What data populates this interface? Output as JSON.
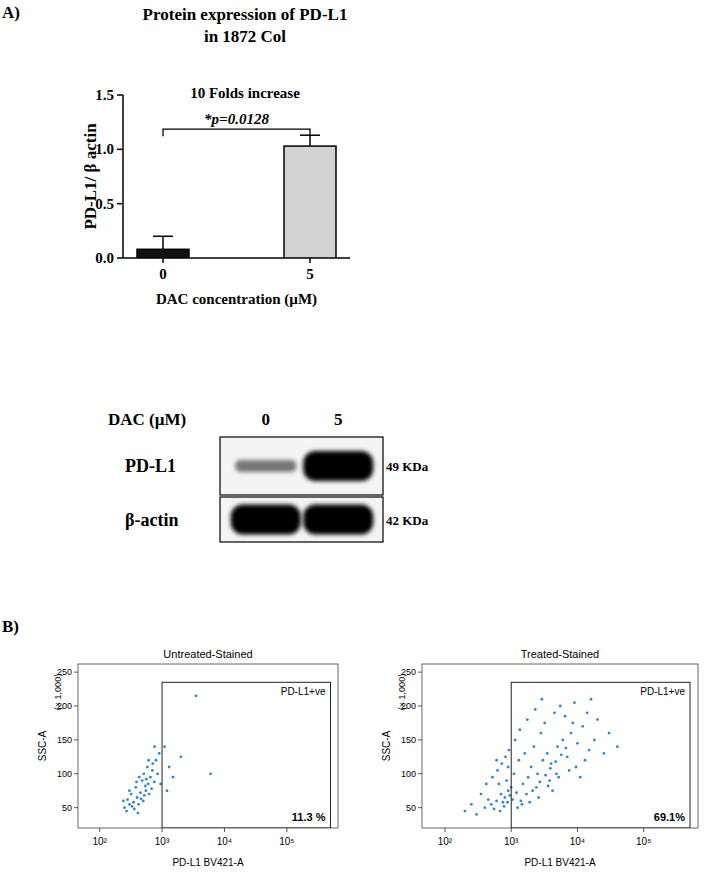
{
  "panel_labels": [
    "A)",
    "B)"
  ],
  "chart_data": [
    {
      "type": "bar",
      "title": [
        "Protein expression of PD-L1",
        "in 1872 Col"
      ],
      "subtitle": "10 Folds increase",
      "x_label": "DAC concentration (µM)",
      "y_label": "PD-L1/ β actin",
      "categories": [
        "0",
        "5"
      ],
      "values": [
        0.08,
        1.03
      ],
      "errors": [
        0.12,
        0.1
      ],
      "colors": [
        "#111111",
        "#d3d3d3"
      ],
      "ylim": [
        0,
        1.5
      ],
      "yticks": [
        {
          "value": 0,
          "label": "0.0"
        },
        {
          "value": 0.5,
          "label": "0.5"
        },
        {
          "value": 1,
          "label": "1.0"
        },
        {
          "value": 1.5,
          "label": "1.5"
        }
      ],
      "annotations": [
        {
          "text": "*p=0.0128",
          "between": [
            0,
            1
          ]
        }
      ]
    },
    {
      "type": "scatter",
      "title": "Untreated-Stained",
      "x_label": "PD-L1 BV421-A",
      "y_label": "SSC-A",
      "y_scale_note": "(× 1,000)",
      "log": "x",
      "color": "#2f86d6",
      "marker": "dot",
      "xlim": [
        45,
        660000
      ],
      "xticks": [
        {
          "value": 100,
          "label": "10²"
        },
        {
          "value": 1000,
          "label": "10³"
        },
        {
          "value": 10000,
          "label": "10⁴"
        },
        {
          "value": 100000,
          "label": "10⁵"
        }
      ],
      "ylim": [
        20,
        262
      ],
      "yticks": [
        50,
        100,
        150,
        200,
        250
      ],
      "gate": {
        "xmin": 1000,
        "xmax": 500000,
        "ymin": 20,
        "ymax": 235,
        "label": "PD-L1+ve",
        "percent_label": "11.3 %"
      },
      "x": [
        250,
        300,
        280,
        350,
        400,
        320,
        450,
        380,
        500,
        420,
        550,
        600,
        480,
        520,
        360,
        300,
        650,
        700,
        580,
        750,
        430,
        270,
        330,
        460,
        540,
        620,
        680,
        800,
        900,
        1100,
        1300,
        850,
        390,
        510,
        560,
        710,
        1500,
        2000,
        3500,
        6000,
        1200,
        950,
        240,
        410,
        610,
        760
      ],
      "y": [
        50,
        55,
        62,
        58,
        65,
        70,
        72,
        80,
        60,
        55,
        75,
        85,
        90,
        68,
        48,
        75,
        95,
        105,
        110,
        88,
        95,
        45,
        52,
        63,
        82,
        70,
        78,
        120,
        130,
        140,
        110,
        100,
        88,
        100,
        92,
        115,
        95,
        125,
        215,
        100,
        75,
        85,
        60,
        42,
        120,
        140
      ]
    },
    {
      "type": "scatter",
      "title": "Treated-Stained",
      "x_label": "PD-L1 BV421-A",
      "y_label": "SSC-A",
      "y_scale_note": "(× 1,000)",
      "log": "x",
      "color": "#2f86d6",
      "marker": "dot",
      "xlim": [
        45,
        660000
      ],
      "xticks": [
        {
          "value": 100,
          "label": "10²"
        },
        {
          "value": 1000,
          "label": "10³"
        },
        {
          "value": 10000,
          "label": "10⁴"
        },
        {
          "value": 100000,
          "label": "10⁵"
        }
      ],
      "ylim": [
        20,
        262
      ],
      "yticks": [
        50,
        100,
        150,
        200,
        250
      ],
      "gate": {
        "xmin": 1000,
        "xmax": 500000,
        "ymin": 20,
        "ymax": 235,
        "label": "PD-L1+ve",
        "percent_label": "69.1%"
      },
      "x": [
        300,
        400,
        500,
        600,
        700,
        800,
        900,
        1000,
        450,
        550,
        650,
        750,
        850,
        950,
        1200,
        1500,
        1800,
        2000,
        2500,
        3000,
        3500,
        4000,
        5000,
        6000,
        7000,
        8000,
        10000,
        12000,
        15000,
        20000,
        2200,
        2800,
        3200,
        4500,
        5500,
        6500,
        9000,
        1300,
        1600,
        1100,
        1400,
        1700,
        2400,
        2600,
        3800,
        4200,
        5200,
        7500,
        9500,
        11000,
        13000,
        18000,
        25000,
        30000,
        350,
        420,
        520,
        620,
        720,
        820,
        920,
        680,
        780,
        880,
        1050,
        1250,
        1450,
        1900,
        2100,
        2700,
        3300,
        3900,
        4700,
        5700,
        6700,
        8500,
        14000,
        16000,
        200,
        250,
        1150,
        1350,
        1750,
        2300,
        2900,
        40000,
        3600,
        4800,
        600,
        900
      ],
      "y": [
        40,
        50,
        55,
        60,
        70,
        65,
        75,
        80,
        62,
        48,
        85,
        58,
        90,
        68,
        72,
        85,
        95,
        110,
        100,
        120,
        130,
        115,
        140,
        150,
        125,
        160,
        145,
        170,
        135,
        180,
        140,
        160,
        175,
        190,
        200,
        185,
        205,
        120,
        130,
        100,
        60,
        70,
        80,
        65,
        90,
        75,
        95,
        105,
        110,
        95,
        120,
        150,
        130,
        160,
        70,
        85,
        95,
        105,
        115,
        125,
        135,
        45,
        52,
        58,
        62,
        50,
        55,
        58,
        75,
        88,
        98,
        108,
        118,
        128,
        138,
        175,
        190,
        210,
        45,
        55,
        150,
        165,
        180,
        195,
        210,
        140,
        82,
        100,
        120,
        110
      ]
    }
  ],
  "blot": {
    "header_label": "DAC (µM)",
    "lanes": [
      "0",
      "5"
    ],
    "rows": [
      {
        "name": "PD-L1",
        "size": "49 KDa",
        "intensity": [
          0.25,
          1
        ]
      },
      {
        "name": "β-actin",
        "size": "42 KDa",
        "intensity": [
          1,
          1
        ]
      }
    ]
  }
}
